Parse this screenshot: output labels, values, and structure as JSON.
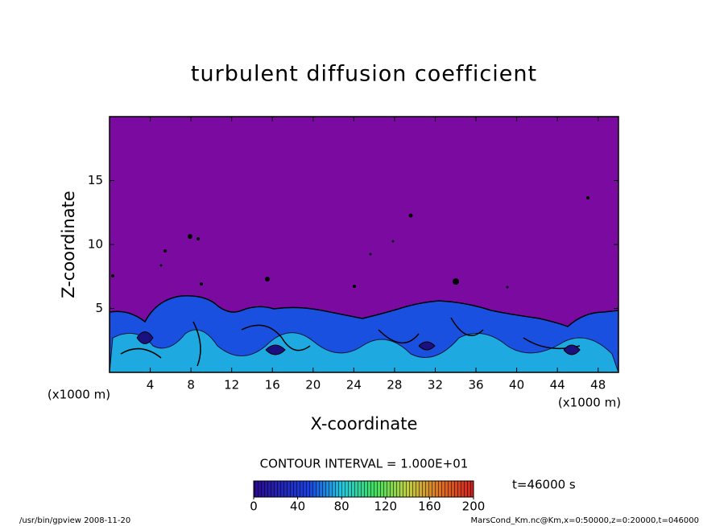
{
  "chart_data": {
    "type": "contour",
    "title": "turbulent diffusion coefficient",
    "x_label": "X-coordinate",
    "y_label": "Z-coordinate",
    "x_unit_left": "(x1000 m)",
    "x_unit_right": "(x1000 m)",
    "xlim": [
      0,
      50
    ],
    "ylim": [
      0,
      20
    ],
    "xticks": [
      4,
      8,
      12,
      16,
      20,
      24,
      28,
      32,
      36,
      40,
      44,
      48
    ],
    "yticks": [
      5,
      10,
      15
    ],
    "contour_interval": "CONTOUR INTERVAL = 1.000E+01",
    "colorbar": {
      "lim": [
        0,
        200
      ],
      "ticks": [
        0,
        40,
        80,
        120,
        160,
        200
      ]
    },
    "time_label": "t=46000 s"
  },
  "footer": {
    "left": "/usr/bin/gpview  2008-11-20",
    "right": "MarsCond_Km.nc@Km,x=0:50000,z=0:20000,t=046000"
  }
}
